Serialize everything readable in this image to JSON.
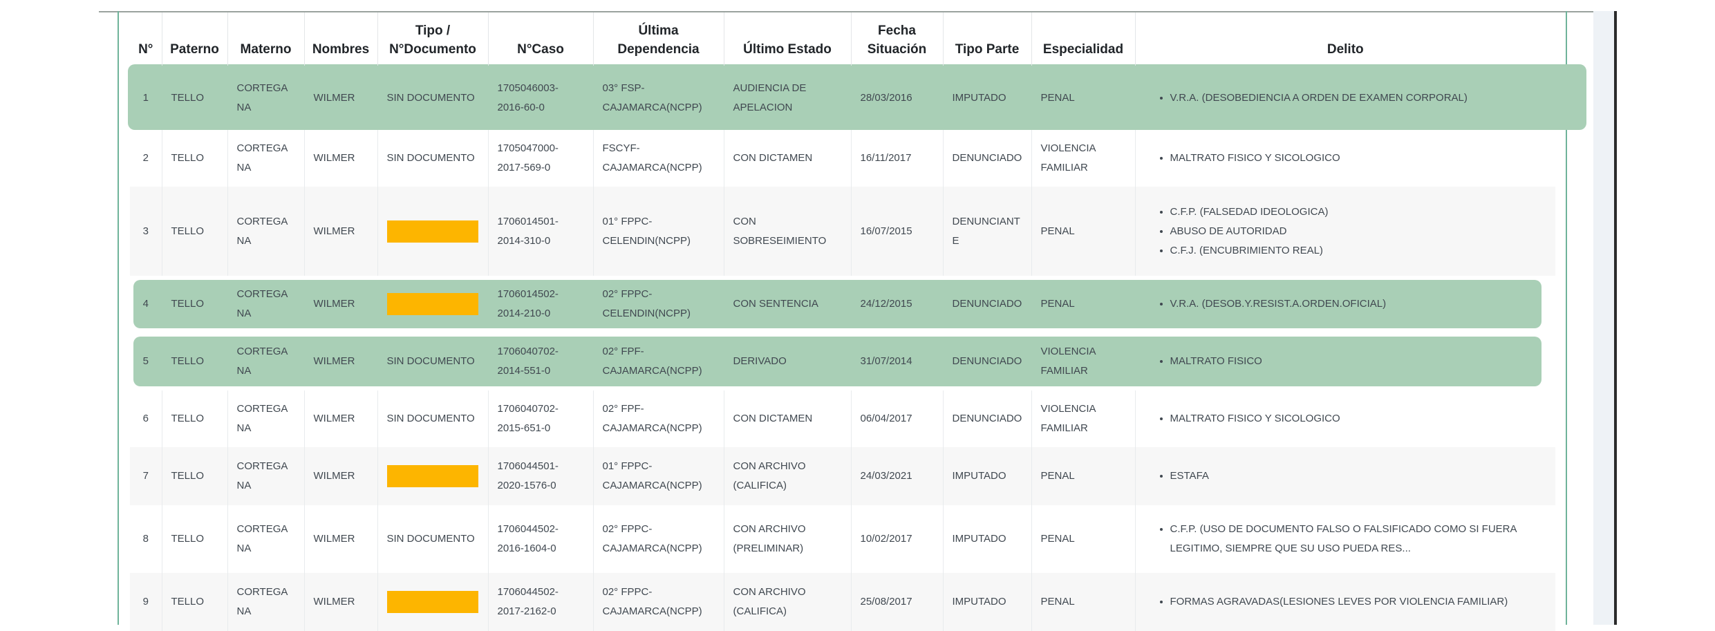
{
  "table": {
    "headers": [
      "N°",
      "Paterno",
      "Materno",
      "Nombres",
      "Tipo / N°Documento",
      "N°Caso",
      "Última Dependencia",
      "Último Estado",
      "Fecha Situación",
      "Tipo Parte",
      "Especialidad",
      "Delito"
    ],
    "rows": [
      {
        "n": "1",
        "paterno": "TELLO",
        "materno": "CORTEGANA",
        "nombres": "WILMER",
        "documento": "SIN DOCUMENTO",
        "caso": "1705046003-2016-60-0",
        "dependencia": "03° FSP-CAJAMARCA(NCPP)",
        "estado": "AUDIENCIA DE APELACION",
        "fecha": "28/03/2016",
        "tipo_parte": "IMPUTADO",
        "especialidad": "PENAL",
        "delitos": [
          "V.R.A. (DESOBEDIENCIA A ORDEN DE EXAMEN CORPORAL)"
        ],
        "highlighted": true,
        "redacted": false
      },
      {
        "n": "2",
        "paterno": "TELLO",
        "materno": "CORTEGANA",
        "nombres": "WILMER",
        "documento": "SIN DOCUMENTO",
        "caso": "1705047000-2017-569-0",
        "dependencia": "FSCYF-CAJAMARCA(NCPP)",
        "estado": "CON DICTAMEN",
        "fecha": "16/11/2017",
        "tipo_parte": "DENUNCIADO",
        "especialidad": "VIOLENCIA FAMILIAR",
        "delitos": [
          "MALTRATO FISICO Y SICOLOGICO"
        ],
        "highlighted": false,
        "redacted": false
      },
      {
        "n": "3",
        "paterno": "TELLO",
        "materno": "CORTEGANA",
        "nombres": "WILMER",
        "documento": "",
        "caso": "1706014501-2014-310-0",
        "dependencia": "01° FPPC-CELENDIN(NCPP)",
        "estado": "CON SOBRESEIMIENTO",
        "fecha": "16/07/2015",
        "tipo_parte": "DENUNCIANTE",
        "especialidad": "PENAL",
        "delitos": [
          "C.F.P. (FALSEDAD IDEOLOGICA)",
          "ABUSO DE AUTORIDAD",
          "C.F.J. (ENCUBRIMIENTO REAL)"
        ],
        "highlighted": false,
        "redacted": true
      },
      {
        "n": "4",
        "paterno": "TELLO",
        "materno": "CORTEGANA",
        "nombres": "WILMER",
        "documento": "",
        "caso": "1706014502-2014-210-0",
        "dependencia": "02° FPPC-CELENDIN(NCPP)",
        "estado": "CON SENTENCIA",
        "fecha": "24/12/2015",
        "tipo_parte": "DENUNCIADO",
        "especialidad": "PENAL",
        "delitos": [
          "V.R.A. (DESOB.Y.RESIST.A.ORDEN.OFICIAL)"
        ],
        "highlighted": true,
        "redacted": true
      },
      {
        "n": "5",
        "paterno": "TELLO",
        "materno": "CORTEGANA",
        "nombres": "WILMER",
        "documento": "SIN DOCUMENTO",
        "caso": "1706040702-2014-551-0",
        "dependencia": "02° FPF-CAJAMARCA(NCPP)",
        "estado": "DERIVADO",
        "fecha": "31/07/2014",
        "tipo_parte": "DENUNCIADO",
        "especialidad": "VIOLENCIA FAMILIAR",
        "delitos": [
          "MALTRATO FISICO"
        ],
        "highlighted": true,
        "redacted": false
      },
      {
        "n": "6",
        "paterno": "TELLO",
        "materno": "CORTEGANA",
        "nombres": "WILMER",
        "documento": "SIN DOCUMENTO",
        "caso": "1706040702-2015-651-0",
        "dependencia": "02° FPF-CAJAMARCA(NCPP)",
        "estado": "CON DICTAMEN",
        "fecha": "06/04/2017",
        "tipo_parte": "DENUNCIADO",
        "especialidad": "VIOLENCIA FAMILIAR",
        "delitos": [
          "MALTRATO FISICO Y SICOLOGICO"
        ],
        "highlighted": false,
        "redacted": false
      },
      {
        "n": "7",
        "paterno": "TELLO",
        "materno": "CORTEGANA",
        "nombres": "WILMER",
        "documento": "",
        "caso": "1706044501-2020-1576-0",
        "dependencia": "01° FPPC-CAJAMARCA(NCPP)",
        "estado": "CON ARCHIVO (CALIFICA)",
        "fecha": "24/03/2021",
        "tipo_parte": "IMPUTADO",
        "especialidad": "PENAL",
        "delitos": [
          "ESTAFA"
        ],
        "highlighted": false,
        "redacted": true
      },
      {
        "n": "8",
        "paterno": "TELLO",
        "materno": "CORTEGANA",
        "nombres": "WILMER",
        "documento": "SIN DOCUMENTO",
        "caso": "1706044502-2016-1604-0",
        "dependencia": "02° FPPC-CAJAMARCA(NCPP)",
        "estado": "CON ARCHIVO (PRELIMINAR)",
        "fecha": "10/02/2017",
        "tipo_parte": "IMPUTADO",
        "especialidad": "PENAL",
        "delitos": [
          "C.F.P. (USO DE DOCUMENTO FALSO O FALSIFICADO COMO SI FUERA LEGITIMO, SIEMPRE QUE SU USO PUEDA RES..."
        ],
        "highlighted": false,
        "redacted": false
      },
      {
        "n": "9",
        "paterno": "TELLO",
        "materno": "CORTEGANA",
        "nombres": "WILMER",
        "documento": "",
        "caso": "1706044502-2017-2162-0",
        "dependencia": "02° FPPC-CAJAMARCA(NCPP)",
        "estado": "CON ARCHIVO (CALIFICA)",
        "fecha": "25/08/2017",
        "tipo_parte": "IMPUTADO",
        "especialidad": "PENAL",
        "delitos": [
          "FORMAS AGRAVADAS(LESIONES LEVES POR VIOLENCIA FAMILIAR)"
        ],
        "highlighted": false,
        "redacted": true
      }
    ]
  },
  "colors": {
    "highlight": "#a9cfb6",
    "redaction": "#fdb500",
    "stripe": "#f7f7f7",
    "frame": "#6fb39a"
  }
}
